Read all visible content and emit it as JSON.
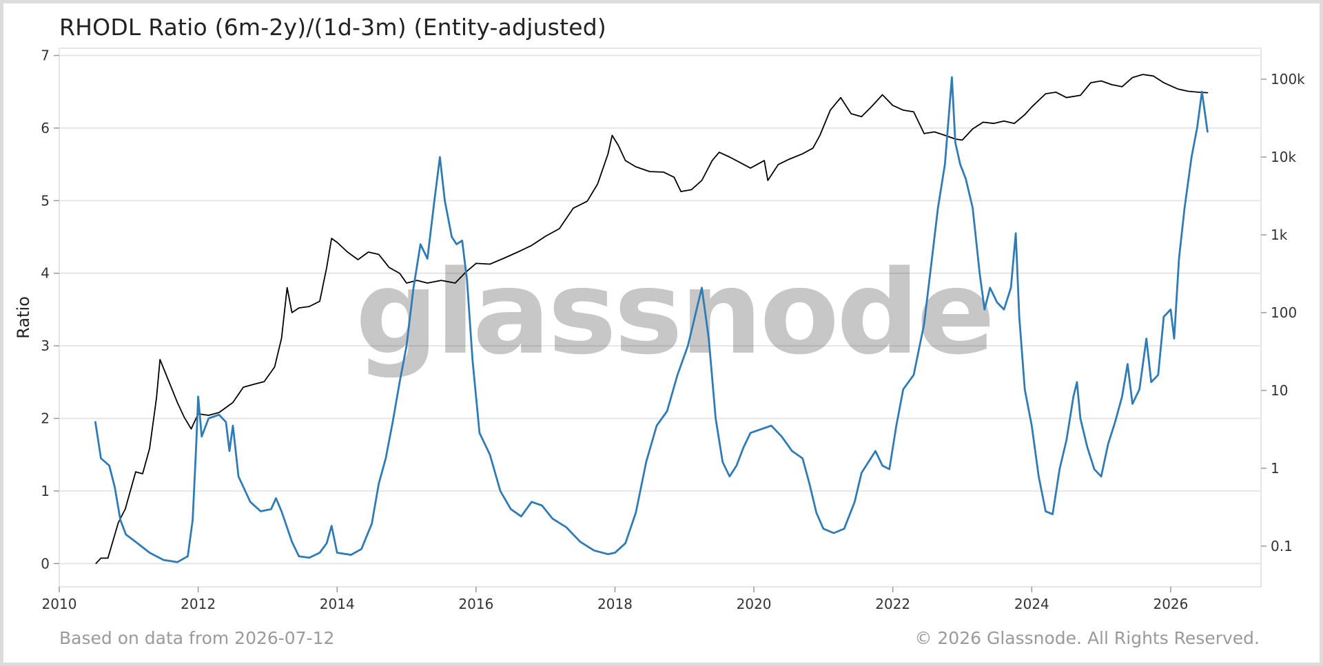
{
  "chart_data": {
    "type": "line",
    "title": "RHODL Ratio (6m-2y)/(1d-3m) (Entity-adjusted)",
    "ylabel": "Ratio",
    "y2label": "",
    "xlim": [
      2010,
      2027.3
    ],
    "ylim": [
      -0.32,
      7.1
    ],
    "y2_scale": "log",
    "y2lim": [
      0.03,
      250000
    ],
    "x_ticks": [
      2010,
      2012,
      2014,
      2016,
      2018,
      2020,
      2022,
      2024,
      2026
    ],
    "y_ticks": [
      0,
      1,
      2,
      3,
      4,
      5,
      6,
      7
    ],
    "y2_ticks": [
      {
        "value": 0.1,
        "label": "0.1"
      },
      {
        "value": 1,
        "label": "1"
      },
      {
        "value": 10,
        "label": "10"
      },
      {
        "value": 100,
        "label": "100"
      },
      {
        "value": 1000,
        "label": "1k"
      },
      {
        "value": 10000,
        "label": "10k"
      },
      {
        "value": 100000,
        "label": "100k"
      }
    ],
    "grid": true,
    "watermark": "glassnode",
    "series": [
      {
        "axis": "left",
        "color": "#2e7bb6",
        "points": [
          [
            2010.52,
            1.95
          ],
          [
            2010.6,
            1.45
          ],
          [
            2010.72,
            1.35
          ],
          [
            2010.8,
            1.05
          ],
          [
            2010.88,
            0.6
          ],
          [
            2010.96,
            0.4
          ],
          [
            2011.1,
            0.3
          ],
          [
            2011.3,
            0.15
          ],
          [
            2011.5,
            0.05
          ],
          [
            2011.7,
            0.02
          ],
          [
            2011.85,
            0.1
          ],
          [
            2011.92,
            0.6
          ],
          [
            2011.97,
            1.6
          ],
          [
            2012.0,
            2.3
          ],
          [
            2012.05,
            1.75
          ],
          [
            2012.15,
            2.0
          ],
          [
            2012.3,
            2.05
          ],
          [
            2012.4,
            1.95
          ],
          [
            2012.45,
            1.55
          ],
          [
            2012.5,
            1.9
          ],
          [
            2012.58,
            1.2
          ],
          [
            2012.75,
            0.85
          ],
          [
            2012.9,
            0.72
          ],
          [
            2013.05,
            0.75
          ],
          [
            2013.12,
            0.9
          ],
          [
            2013.2,
            0.72
          ],
          [
            2013.35,
            0.3
          ],
          [
            2013.45,
            0.1
          ],
          [
            2013.6,
            0.08
          ],
          [
            2013.75,
            0.15
          ],
          [
            2013.85,
            0.28
          ],
          [
            2013.92,
            0.52
          ],
          [
            2014.0,
            0.15
          ],
          [
            2014.2,
            0.12
          ],
          [
            2014.35,
            0.2
          ],
          [
            2014.5,
            0.55
          ],
          [
            2014.6,
            1.1
          ],
          [
            2014.7,
            1.45
          ],
          [
            2014.8,
            1.95
          ],
          [
            2014.9,
            2.5
          ],
          [
            2015.0,
            3.0
          ],
          [
            2015.1,
            3.8
          ],
          [
            2015.2,
            4.4
          ],
          [
            2015.3,
            4.2
          ],
          [
            2015.4,
            5.0
          ],
          [
            2015.48,
            5.6
          ],
          [
            2015.55,
            5.0
          ],
          [
            2015.65,
            4.5
          ],
          [
            2015.72,
            4.4
          ],
          [
            2015.8,
            4.45
          ],
          [
            2015.87,
            3.9
          ],
          [
            2015.95,
            2.8
          ],
          [
            2016.05,
            1.8
          ],
          [
            2016.2,
            1.5
          ],
          [
            2016.35,
            1.0
          ],
          [
            2016.5,
            0.75
          ],
          [
            2016.65,
            0.65
          ],
          [
            2016.8,
            0.85
          ],
          [
            2016.95,
            0.8
          ],
          [
            2017.1,
            0.62
          ],
          [
            2017.3,
            0.5
          ],
          [
            2017.5,
            0.3
          ],
          [
            2017.7,
            0.18
          ],
          [
            2017.9,
            0.13
          ],
          [
            2018.0,
            0.15
          ],
          [
            2018.15,
            0.28
          ],
          [
            2018.3,
            0.7
          ],
          [
            2018.45,
            1.4
          ],
          [
            2018.6,
            1.9
          ],
          [
            2018.75,
            2.1
          ],
          [
            2018.9,
            2.6
          ],
          [
            2019.05,
            3.0
          ],
          [
            2019.15,
            3.4
          ],
          [
            2019.25,
            3.8
          ],
          [
            2019.35,
            3.1
          ],
          [
            2019.45,
            2.0
          ],
          [
            2019.55,
            1.4
          ],
          [
            2019.65,
            1.2
          ],
          [
            2019.75,
            1.35
          ],
          [
            2019.85,
            1.6
          ],
          [
            2019.95,
            1.8
          ],
          [
            2020.1,
            1.85
          ],
          [
            2020.25,
            1.9
          ],
          [
            2020.4,
            1.75
          ],
          [
            2020.55,
            1.55
          ],
          [
            2020.7,
            1.45
          ],
          [
            2020.8,
            1.1
          ],
          [
            2020.9,
            0.7
          ],
          [
            2021.0,
            0.48
          ],
          [
            2021.15,
            0.42
          ],
          [
            2021.3,
            0.48
          ],
          [
            2021.45,
            0.85
          ],
          [
            2021.55,
            1.25
          ],
          [
            2021.65,
            1.4
          ],
          [
            2021.75,
            1.55
          ],
          [
            2021.85,
            1.35
          ],
          [
            2021.95,
            1.3
          ],
          [
            2022.05,
            1.9
          ],
          [
            2022.15,
            2.4
          ],
          [
            2022.3,
            2.6
          ],
          [
            2022.45,
            3.3
          ],
          [
            2022.55,
            4.1
          ],
          [
            2022.65,
            4.9
          ],
          [
            2022.75,
            5.5
          ],
          [
            2022.85,
            6.7
          ],
          [
            2022.9,
            5.8
          ],
          [
            2022.97,
            5.5
          ],
          [
            2023.05,
            5.3
          ],
          [
            2023.15,
            4.9
          ],
          [
            2023.25,
            4.0
          ],
          [
            2023.32,
            3.5
          ],
          [
            2023.4,
            3.8
          ],
          [
            2023.5,
            3.6
          ],
          [
            2023.6,
            3.5
          ],
          [
            2023.7,
            3.8
          ],
          [
            2023.77,
            4.55
          ],
          [
            2023.82,
            3.4
          ],
          [
            2023.9,
            2.4
          ],
          [
            2024.0,
            1.9
          ],
          [
            2024.1,
            1.2
          ],
          [
            2024.2,
            0.72
          ],
          [
            2024.3,
            0.68
          ],
          [
            2024.4,
            1.3
          ],
          [
            2024.5,
            1.7
          ],
          [
            2024.6,
            2.3
          ],
          [
            2024.65,
            2.5
          ],
          [
            2024.7,
            2.0
          ],
          [
            2024.8,
            1.6
          ],
          [
            2024.9,
            1.3
          ],
          [
            2025.0,
            1.2
          ],
          [
            2025.1,
            1.65
          ],
          [
            2025.2,
            1.95
          ],
          [
            2025.3,
            2.3
          ],
          [
            2025.38,
            2.75
          ],
          [
            2025.45,
            2.2
          ],
          [
            2025.55,
            2.4
          ],
          [
            2025.65,
            3.1
          ],
          [
            2025.72,
            2.5
          ],
          [
            2025.82,
            2.6
          ],
          [
            2025.9,
            3.4
          ],
          [
            2026.0,
            3.5
          ],
          [
            2026.05,
            3.1
          ],
          [
            2026.12,
            4.2
          ],
          [
            2026.2,
            4.9
          ],
          [
            2026.3,
            5.6
          ],
          [
            2026.38,
            6.0
          ],
          [
            2026.45,
            6.5
          ],
          [
            2026.48,
            6.3
          ],
          [
            2026.53,
            5.95
          ]
        ]
      },
      {
        "axis": "right",
        "color": "#000000",
        "points": [
          [
            2010.53,
            0.06
          ],
          [
            2010.6,
            0.07
          ],
          [
            2010.7,
            0.07
          ],
          [
            2010.85,
            0.2
          ],
          [
            2010.95,
            0.3
          ],
          [
            2011.1,
            0.9
          ],
          [
            2011.2,
            0.85
          ],
          [
            2011.3,
            1.8
          ],
          [
            2011.4,
            8
          ],
          [
            2011.45,
            25
          ],
          [
            2011.55,
            15
          ],
          [
            2011.7,
            7
          ],
          [
            2011.8,
            4.5
          ],
          [
            2011.9,
            3.2
          ],
          [
            2012.0,
            5
          ],
          [
            2012.15,
            4.8
          ],
          [
            2012.3,
            5.2
          ],
          [
            2012.5,
            7
          ],
          [
            2012.65,
            11
          ],
          [
            2012.8,
            12
          ],
          [
            2012.95,
            13
          ],
          [
            2013.1,
            20
          ],
          [
            2013.2,
            47
          ],
          [
            2013.28,
            210
          ],
          [
            2013.35,
            100
          ],
          [
            2013.45,
            115
          ],
          [
            2013.6,
            120
          ],
          [
            2013.75,
            140
          ],
          [
            2013.85,
            380
          ],
          [
            2013.92,
            900
          ],
          [
            2014.0,
            800
          ],
          [
            2014.15,
            600
          ],
          [
            2014.3,
            480
          ],
          [
            2014.45,
            600
          ],
          [
            2014.6,
            560
          ],
          [
            2014.75,
            380
          ],
          [
            2014.9,
            320
          ],
          [
            2015.0,
            240
          ],
          [
            2015.15,
            260
          ],
          [
            2015.3,
            240
          ],
          [
            2015.5,
            260
          ],
          [
            2015.7,
            240
          ],
          [
            2015.85,
            330
          ],
          [
            2016.0,
            430
          ],
          [
            2016.2,
            420
          ],
          [
            2016.4,
            500
          ],
          [
            2016.6,
            600
          ],
          [
            2016.8,
            730
          ],
          [
            2017.0,
            960
          ],
          [
            2017.2,
            1200
          ],
          [
            2017.4,
            2200
          ],
          [
            2017.6,
            2700
          ],
          [
            2017.75,
            4500
          ],
          [
            2017.9,
            11000
          ],
          [
            2017.96,
            19000
          ],
          [
            2018.05,
            14000
          ],
          [
            2018.15,
            9000
          ],
          [
            2018.3,
            7500
          ],
          [
            2018.5,
            6500
          ],
          [
            2018.7,
            6400
          ],
          [
            2018.85,
            5500
          ],
          [
            2018.95,
            3600
          ],
          [
            2019.1,
            3800
          ],
          [
            2019.25,
            5000
          ],
          [
            2019.4,
            9000
          ],
          [
            2019.5,
            11500
          ],
          [
            2019.65,
            10000
          ],
          [
            2019.8,
            8500
          ],
          [
            2019.95,
            7200
          ],
          [
            2020.15,
            9000
          ],
          [
            2020.2,
            5000
          ],
          [
            2020.35,
            8000
          ],
          [
            2020.5,
            9300
          ],
          [
            2020.7,
            11000
          ],
          [
            2020.85,
            13000
          ],
          [
            2020.95,
            19000
          ],
          [
            2021.1,
            40000
          ],
          [
            2021.25,
            58000
          ],
          [
            2021.4,
            36000
          ],
          [
            2021.55,
            33000
          ],
          [
            2021.7,
            45000
          ],
          [
            2021.85,
            63000
          ],
          [
            2022.0,
            46000
          ],
          [
            2022.15,
            40000
          ],
          [
            2022.3,
            38000
          ],
          [
            2022.45,
            20000
          ],
          [
            2022.6,
            21000
          ],
          [
            2022.75,
            19000
          ],
          [
            2022.9,
            17000
          ],
          [
            2023.0,
            16500
          ],
          [
            2023.15,
            23000
          ],
          [
            2023.3,
            28000
          ],
          [
            2023.45,
            27000
          ],
          [
            2023.6,
            29000
          ],
          [
            2023.75,
            27000
          ],
          [
            2023.9,
            35000
          ],
          [
            2024.0,
            44000
          ],
          [
            2024.2,
            65000
          ],
          [
            2024.35,
            68000
          ],
          [
            2024.5,
            58000
          ],
          [
            2024.7,
            62000
          ],
          [
            2024.85,
            90000
          ],
          [
            2025.0,
            95000
          ],
          [
            2025.15,
            85000
          ],
          [
            2025.3,
            80000
          ],
          [
            2025.45,
            105000
          ],
          [
            2025.6,
            115000
          ],
          [
            2025.75,
            110000
          ],
          [
            2025.9,
            90000
          ],
          [
            2026.1,
            75000
          ],
          [
            2026.25,
            70000
          ],
          [
            2026.4,
            68000
          ],
          [
            2026.53,
            67000
          ]
        ]
      }
    ]
  },
  "footer": {
    "left": "Based on data from 2026-07-12",
    "right": "© 2026 Glassnode. All Rights Reserved."
  }
}
